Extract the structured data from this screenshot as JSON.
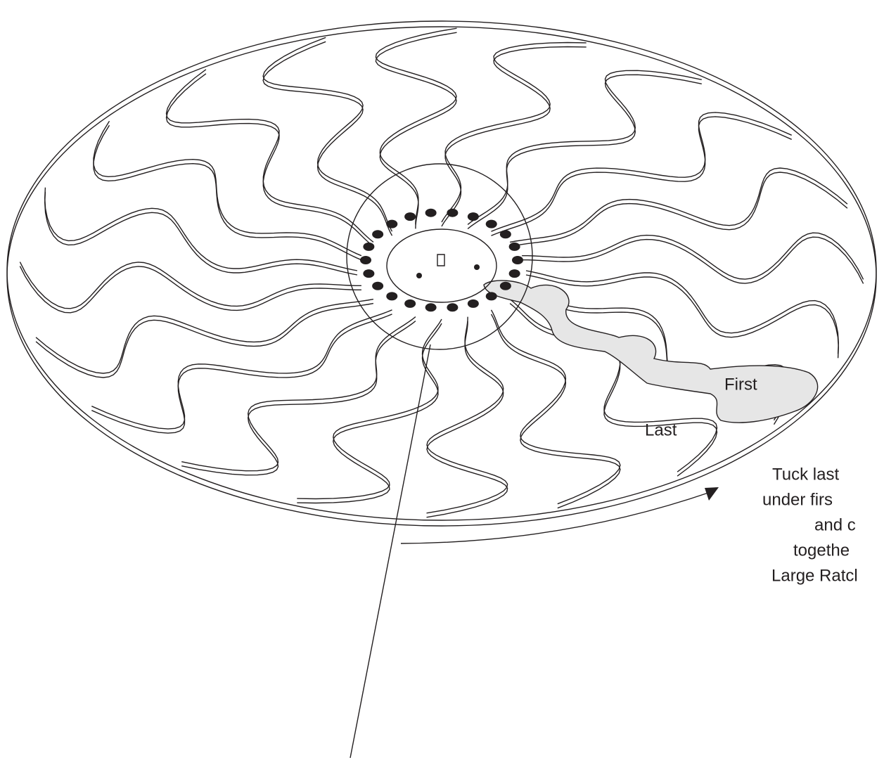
{
  "labels": {
    "first": "First",
    "last": "Last"
  },
  "instruction": [
    "Tuck last",
    "under firs",
    "and c",
    "togethe",
    "Large Ratcl"
  ]
}
